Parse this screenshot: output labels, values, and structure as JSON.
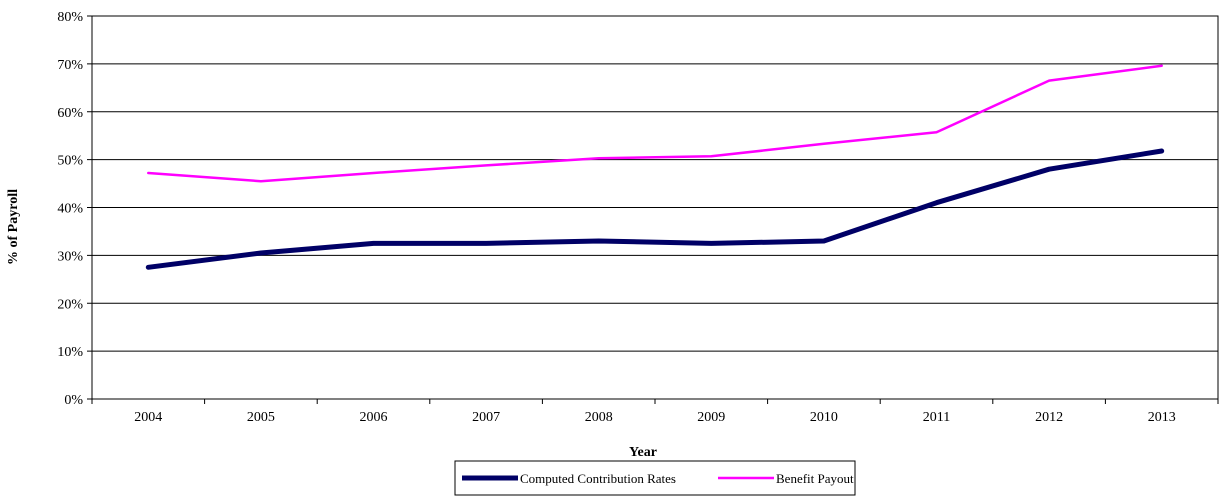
{
  "chart_data": {
    "type": "line",
    "title": "",
    "xlabel": "Year",
    "ylabel": "% of Payroll",
    "categories": [
      "2004",
      "2005",
      "2006",
      "2007",
      "2008",
      "2009",
      "2010",
      "2011",
      "2012",
      "2013"
    ],
    "ylim": [
      0,
      80
    ],
    "yticks": [
      0,
      10,
      20,
      30,
      40,
      50,
      60,
      70,
      80
    ],
    "ytick_labels": [
      "0%",
      "10%",
      "20%",
      "30%",
      "40%",
      "50%",
      "60%",
      "70%",
      "80%"
    ],
    "grid": "horizontal",
    "legend_position": "bottom",
    "series": [
      {
        "name": "Computed Contribution Rates",
        "color": "#000066",
        "values": [
          27.5,
          30.5,
          32.5,
          32.5,
          33.0,
          32.5,
          33.0,
          41.0,
          48.0,
          51.8
        ]
      },
      {
        "name": "Benefit Payout",
        "color": "#FF00FF",
        "values": [
          47.2,
          45.5,
          47.2,
          48.8,
          50.3,
          50.7,
          53.3,
          55.7,
          66.5,
          69.6
        ]
      }
    ]
  }
}
